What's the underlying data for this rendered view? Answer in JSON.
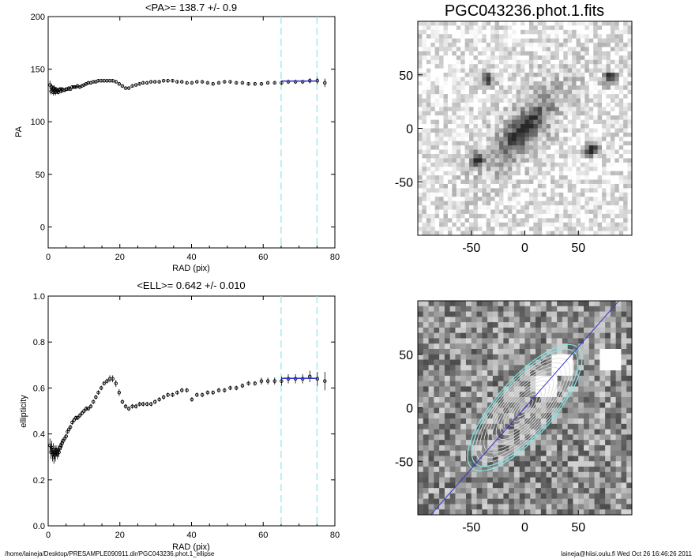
{
  "footer": {
    "path": "/home/laineja/Desktop/PRESAMPLE090911.dir/PGC043236.phot.1_ellipse",
    "stamp": "laineja@hiisi.oulu.fi  Wed Oct 26 16:46:26 2011"
  },
  "colors": {
    "fit_line": "#3333cc",
    "window_lines": "#88e8e8",
    "profile": "#000000"
  },
  "chart_data": [
    {
      "type": "scatter",
      "title": "<PA>= 138.7 +/-   0.9",
      "xlabel": "RAD (pix)",
      "ylabel": "PA",
      "xlim": [
        0,
        80
      ],
      "ylim": [
        -20,
        200
      ],
      "xticks": [
        0,
        20,
        40,
        60,
        80
      ],
      "yticks": [
        0,
        50,
        100,
        150,
        200
      ],
      "window": [
        65,
        75
      ],
      "fit": {
        "x": [
          65,
          75
        ],
        "y": [
          138.7,
          138.7
        ]
      },
      "x": [
        0.5,
        0.8,
        1.0,
        1.2,
        1.4,
        1.6,
        1.8,
        2.0,
        2.2,
        2.4,
        2.6,
        2.8,
        3.0,
        3.3,
        3.6,
        3.9,
        4.2,
        4.6,
        5.0,
        5.4,
        5.8,
        6.2,
        6.7,
        7.2,
        7.7,
        8.2,
        8.8,
        9.4,
        10.0,
        10.6,
        11.2,
        11.9,
        12.6,
        13.3,
        14.0,
        14.8,
        15.6,
        16.4,
        17.2,
        18.0,
        18.9,
        19.8,
        20.7,
        21.6,
        22.5,
        23.5,
        24.5,
        25.5,
        26.5,
        27.6,
        28.7,
        29.8,
        31.0,
        32.2,
        33.4,
        34.7,
        36.0,
        37.3,
        38.7,
        40.1,
        41.5,
        43.0,
        44.5,
        46.0,
        47.6,
        49.2,
        50.8,
        52.5,
        54.2,
        55.9,
        57.7,
        59.5,
        61.3,
        63.2,
        65.1,
        67.0,
        69.0,
        71.0,
        73.0,
        75.1,
        77.2
      ],
      "y": [
        135,
        129,
        133,
        131,
        128,
        132,
        130,
        128,
        131,
        129,
        130,
        128,
        130,
        131,
        129,
        131,
        130,
        130,
        131,
        131,
        132,
        131,
        133,
        133,
        133,
        134,
        133,
        134,
        135,
        136,
        137,
        137,
        138,
        138,
        139,
        139,
        139,
        139,
        139,
        139,
        138,
        136,
        134,
        132,
        132,
        134,
        135,
        136,
        137,
        137,
        138,
        138,
        138,
        139,
        139,
        139,
        138,
        138,
        137,
        137,
        138,
        138,
        137,
        136,
        137,
        138,
        138,
        137,
        137,
        136,
        136,
        136,
        137,
        137,
        137,
        138,
        138,
        138,
        139,
        139,
        137
      ],
      "err": [
        4,
        3,
        3,
        3,
        3,
        3,
        3,
        3,
        2,
        2,
        2,
        2,
        2,
        2,
        2,
        2,
        1.5,
        1.5,
        1.5,
        1.5,
        1.5,
        1.5,
        1.5,
        1.5,
        1.5,
        1.5,
        1.5,
        1.5,
        1.5,
        1.5,
        1.5,
        1.5,
        1.5,
        1.5,
        1.5,
        1.5,
        1.5,
        1.5,
        1.5,
        1.5,
        1.5,
        1.5,
        1.5,
        1.5,
        1.5,
        1.5,
        1.5,
        1.5,
        1.5,
        1.5,
        1.5,
        1.5,
        1.5,
        1.5,
        1.5,
        1.5,
        1.5,
        1.5,
        1.5,
        1.5,
        1.5,
        1.5,
        1.5,
        1.5,
        1.5,
        1.5,
        1.5,
        1.5,
        1.5,
        1.5,
        1.5,
        1.5,
        1.5,
        1.5,
        2,
        2,
        2,
        2,
        2.5,
        3,
        4
      ]
    },
    {
      "type": "scatter",
      "title": "<ELL>= 0.642 +/-  0.010",
      "xlabel": "RAD (pix)",
      "ylabel": "ellipticity",
      "xlim": [
        0,
        80
      ],
      "ylim": [
        0.0,
        1.0
      ],
      "xticks": [
        0,
        20,
        40,
        60,
        80
      ],
      "yticks": [
        0.0,
        0.2,
        0.4,
        0.6,
        0.8,
        1.0
      ],
      "window": [
        65,
        75
      ],
      "fit": {
        "x": [
          65,
          75
        ],
        "y": [
          0.642,
          0.642
        ]
      },
      "x": [
        0.5,
        0.8,
        1.0,
        1.2,
        1.4,
        1.6,
        1.8,
        2.0,
        2.2,
        2.4,
        2.6,
        2.8,
        3.0,
        3.3,
        3.6,
        3.9,
        4.2,
        4.6,
        5.0,
        5.4,
        5.8,
        6.2,
        6.7,
        7.2,
        7.7,
        8.2,
        8.8,
        9.4,
        10.0,
        10.6,
        11.2,
        11.9,
        12.6,
        13.3,
        14.0,
        14.8,
        15.6,
        16.4,
        17.2,
        18.0,
        18.9,
        19.8,
        20.7,
        21.6,
        22.5,
        23.5,
        24.5,
        25.5,
        26.5,
        27.6,
        28.7,
        29.8,
        31.0,
        32.2,
        33.4,
        34.7,
        36.0,
        37.3,
        38.7,
        40.1,
        41.5,
        43.0,
        44.5,
        46.0,
        47.6,
        49.2,
        50.8,
        52.5,
        54.2,
        55.9,
        57.7,
        59.5,
        61.3,
        63.2,
        65.1,
        67.0,
        69.0,
        71.0,
        73.0,
        75.1,
        77.2
      ],
      "y": [
        0.35,
        0.32,
        0.34,
        0.31,
        0.33,
        0.3,
        0.32,
        0.31,
        0.33,
        0.32,
        0.31,
        0.33,
        0.32,
        0.34,
        0.35,
        0.36,
        0.37,
        0.38,
        0.39,
        0.41,
        0.42,
        0.43,
        0.45,
        0.46,
        0.47,
        0.47,
        0.48,
        0.49,
        0.5,
        0.51,
        0.51,
        0.52,
        0.54,
        0.56,
        0.58,
        0.6,
        0.62,
        0.63,
        0.64,
        0.64,
        0.62,
        0.58,
        0.54,
        0.52,
        0.51,
        0.52,
        0.52,
        0.53,
        0.53,
        0.53,
        0.53,
        0.54,
        0.55,
        0.56,
        0.57,
        0.57,
        0.58,
        0.59,
        0.59,
        0.55,
        0.57,
        0.57,
        0.58,
        0.58,
        0.59,
        0.59,
        0.6,
        0.6,
        0.61,
        0.62,
        0.62,
        0.63,
        0.63,
        0.63,
        0.63,
        0.64,
        0.64,
        0.64,
        0.65,
        0.64,
        0.63
      ],
      "err": [
        0.03,
        0.03,
        0.03,
        0.03,
        0.03,
        0.03,
        0.03,
        0.03,
        0.02,
        0.02,
        0.02,
        0.02,
        0.02,
        0.02,
        0.02,
        0.02,
        0.01,
        0.01,
        0.01,
        0.01,
        0.01,
        0.01,
        0.01,
        0.01,
        0.01,
        0.01,
        0.01,
        0.01,
        0.01,
        0.01,
        0.01,
        0.01,
        0.01,
        0.01,
        0.01,
        0.01,
        0.01,
        0.01,
        0.015,
        0.015,
        0.015,
        0.015,
        0.01,
        0.01,
        0.01,
        0.01,
        0.01,
        0.01,
        0.01,
        0.01,
        0.01,
        0.01,
        0.01,
        0.01,
        0.01,
        0.01,
        0.01,
        0.01,
        0.01,
        0.01,
        0.01,
        0.01,
        0.01,
        0.01,
        0.01,
        0.01,
        0.01,
        0.01,
        0.01,
        0.01,
        0.01,
        0.015,
        0.015,
        0.015,
        0.02,
        0.02,
        0.02,
        0.02,
        0.025,
        0.03,
        0.04
      ]
    },
    {
      "type": "heatmap",
      "title": "PGC043236.phot.1.fits",
      "xlim": [
        -100,
        100
      ],
      "ylim": [
        -100,
        100
      ],
      "xticks": [
        -50,
        0,
        50
      ],
      "yticks": [
        -50,
        0,
        50
      ],
      "galaxy": {
        "x": 0,
        "y": 0,
        "pa_deg": 138.7,
        "ell": 0.642,
        "scale": 28
      },
      "stars": [
        {
          "x": 80,
          "y": 47
        },
        {
          "x": 62,
          "y": -20
        },
        {
          "x": -45,
          "y": -30
        },
        {
          "x": -35,
          "y": 45
        }
      ]
    },
    {
      "type": "heatmap",
      "xlim": [
        -100,
        100
      ],
      "ylim": [
        -100,
        100
      ],
      "xticks": [
        -50,
        0,
        50
      ],
      "yticks": [
        -50,
        0,
        50
      ],
      "pa_line": {
        "pa_deg": 138.7
      },
      "outer_ellipse": {
        "a": 75,
        "ell": 0.642,
        "pa_deg": 138.7
      },
      "masked": [
        {
          "x": 80,
          "y": 47
        },
        {
          "x": 35,
          "y": 42
        },
        {
          "x": 20,
          "y": 20
        }
      ]
    }
  ]
}
